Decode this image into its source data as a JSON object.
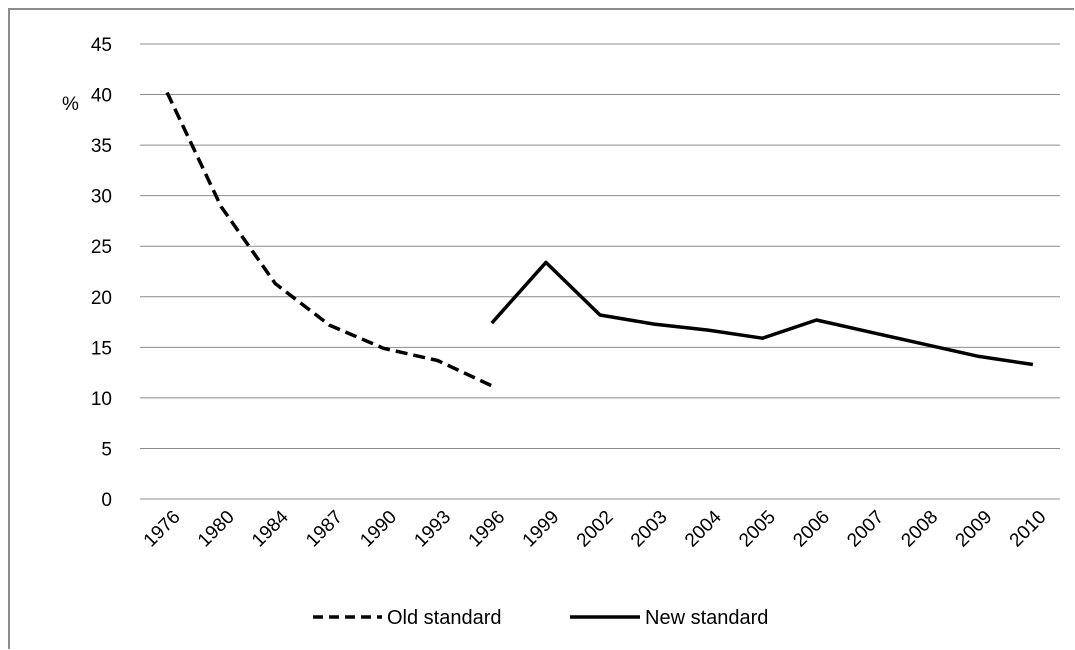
{
  "chart_data": {
    "type": "line",
    "title": "",
    "xlabel": "",
    "ylabel": "%",
    "ylim": [
      0,
      45
    ],
    "yticks": [
      "0",
      "5",
      "10",
      "15",
      "20",
      "25",
      "30",
      "35",
      "40",
      "45"
    ],
    "categories": [
      "1976",
      "1980",
      "1984",
      "1987",
      "1990",
      "1993",
      "1996",
      "1999",
      "2002",
      "2003",
      "2004",
      "2005",
      "2006",
      "2007",
      "2008",
      "2009",
      "2010"
    ],
    "grid": "horizontal",
    "legend_position": "bottom",
    "series": [
      {
        "name": "Old standard",
        "style": "dashed",
        "color": "#000000",
        "values": [
          40.2,
          28.9,
          21.3,
          17.2,
          14.9,
          13.7,
          11.2,
          null,
          null,
          null,
          null,
          null,
          null,
          null,
          null,
          null,
          null
        ]
      },
      {
        "name": "New standard",
        "style": "solid",
        "color": "#000000",
        "values": [
          null,
          null,
          null,
          null,
          null,
          null,
          17.4,
          23.4,
          18.2,
          17.3,
          16.7,
          15.9,
          17.7,
          16.5,
          15.3,
          14.1,
          13.3
        ]
      }
    ]
  }
}
